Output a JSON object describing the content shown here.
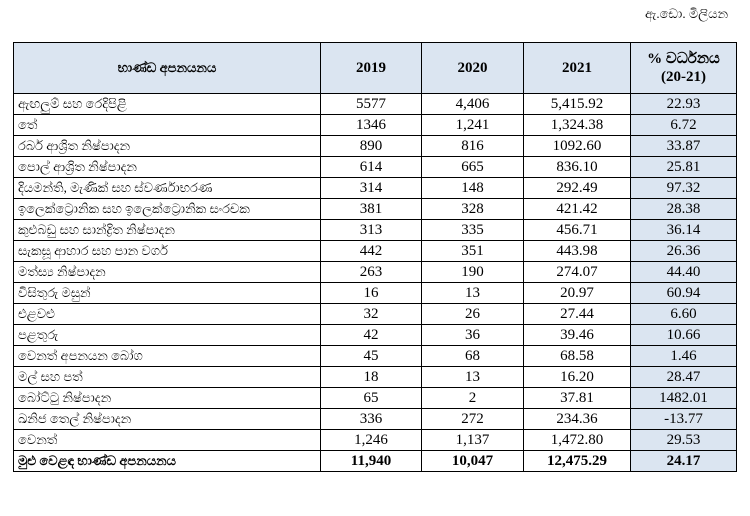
{
  "unit": "ඇ.ඩො. මිලියන",
  "table": {
    "columns": [
      "භාණ්ඩ අපනයනය",
      "2019",
      "2020",
      "2021",
      "% වර්ධනය\n(20-21)"
    ],
    "rows": [
      [
        "ඇඟලුම් සහ රෙදිපිළි",
        "5577",
        "4,406",
        "5,415.92",
        "22.93"
      ],
      [
        "තේ",
        "1346",
        "1,241",
        "1,324.38",
        "6.72"
      ],
      [
        "රබර් ආශ්‍රිත නිෂ්පාදන",
        "890",
        "816",
        "1092.60",
        "33.87"
      ],
      [
        "පොල් ආශ්‍රිත නිෂ්පාදන",
        "614",
        "665",
        "836.10",
        "25.81"
      ],
      [
        "දියමන්ති, මැණික් සහ ස්වර්ණාභරණ",
        "314",
        "148",
        "292.49",
        "97.32"
      ],
      [
        "ඉලෙක්ට්‍රොනික සහ ඉලෙක්ට්‍රොනික සංරචක",
        "381",
        "328",
        "421.42",
        "28.38"
      ],
      [
        "කුළුබඩු සහ සාන්ද්‍රිත නිෂ්පාදන",
        "313",
        "335",
        "456.71",
        "36.14"
      ],
      [
        "සැකසූ ආහාර සහ පාන වර්ග",
        "442",
        "351",
        "443.98",
        "26.36"
      ],
      [
        "මත්ස්‍ය නිෂ්පාදන",
        "263",
        "190",
        "274.07",
        "44.40"
      ],
      [
        "විසිතුරු මසුන්",
        "16",
        "13",
        "20.97",
        "60.94"
      ],
      [
        "එළවළු",
        "32",
        "26",
        "27.44",
        "6.60"
      ],
      [
        "පළතුරු",
        "42",
        "36",
        "39.46",
        "10.66"
      ],
      [
        "වෙනත් අපනයන බෝග",
        "45",
        "68",
        "68.58",
        "1.46"
      ],
      [
        "මල් සහ පත්",
        "18",
        "13",
        "16.20",
        "28.47"
      ],
      [
        "බෝට්ටු නිෂ්පාදන",
        "65",
        "2",
        "37.81",
        "1482.01"
      ],
      [
        "ඛනිජ තෙල් නිෂ්පාදන",
        "336",
        "272",
        "234.36",
        "-13.77"
      ],
      [
        "වෙනත්",
        "1,246",
        "1,137",
        "1,472.80",
        "29.53"
      ]
    ],
    "total": [
      "මුළු වෙළඳ භාණ්ඩ අපනයනය",
      "11,940",
      "10,047",
      "12,475.29",
      "24.17"
    ]
  }
}
